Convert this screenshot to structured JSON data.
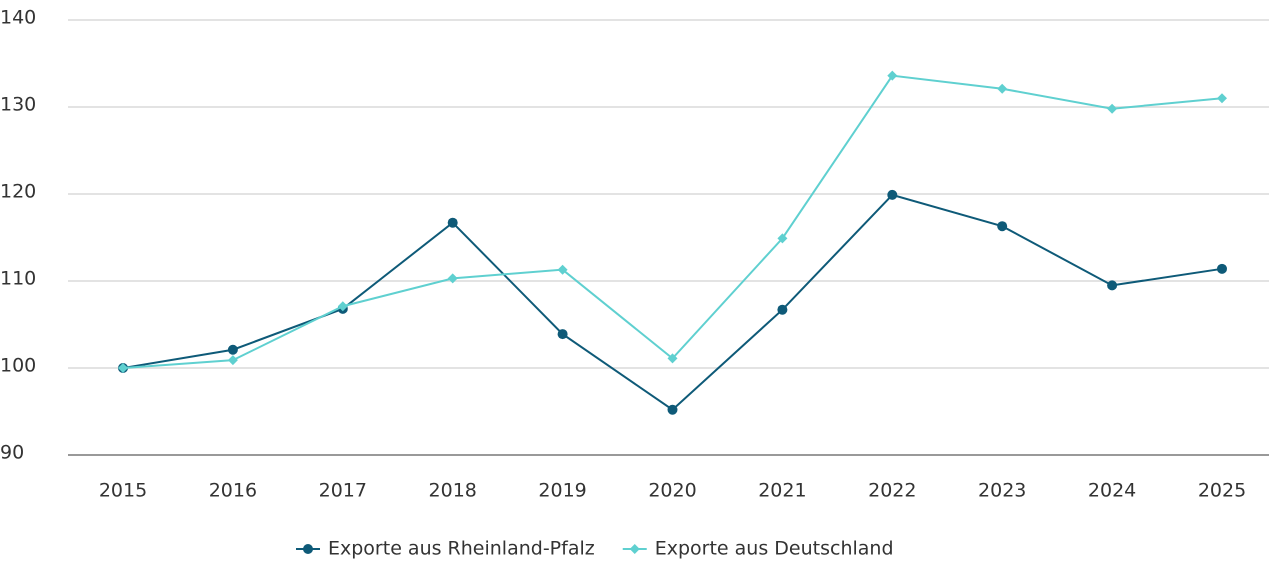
{
  "chart_data": {
    "type": "line",
    "categories": [
      "2015",
      "2016",
      "2017",
      "2018",
      "2019",
      "2020",
      "2021",
      "2022",
      "2023",
      "2024",
      "2025"
    ],
    "series": [
      {
        "name": "Exporte aus Rheinland-Pfalz",
        "color": "#0e5a78",
        "marker": "circle",
        "values": [
          100,
          102.1,
          106.8,
          116.7,
          103.9,
          95.2,
          106.7,
          119.9,
          116.3,
          109.5,
          111.4
        ]
      },
      {
        "name": "Exporte aus Deutschland",
        "color": "#5fd0d0",
        "marker": "diamond",
        "values": [
          100,
          100.9,
          107.1,
          110.3,
          111.3,
          101.1,
          114.9,
          133.6,
          132.1,
          129.8,
          131.0
        ]
      }
    ],
    "ylim": [
      90,
      140
    ],
    "yticks": [
      90,
      100,
      110,
      120,
      130,
      140
    ],
    "grid": true,
    "legend": "bottom"
  }
}
